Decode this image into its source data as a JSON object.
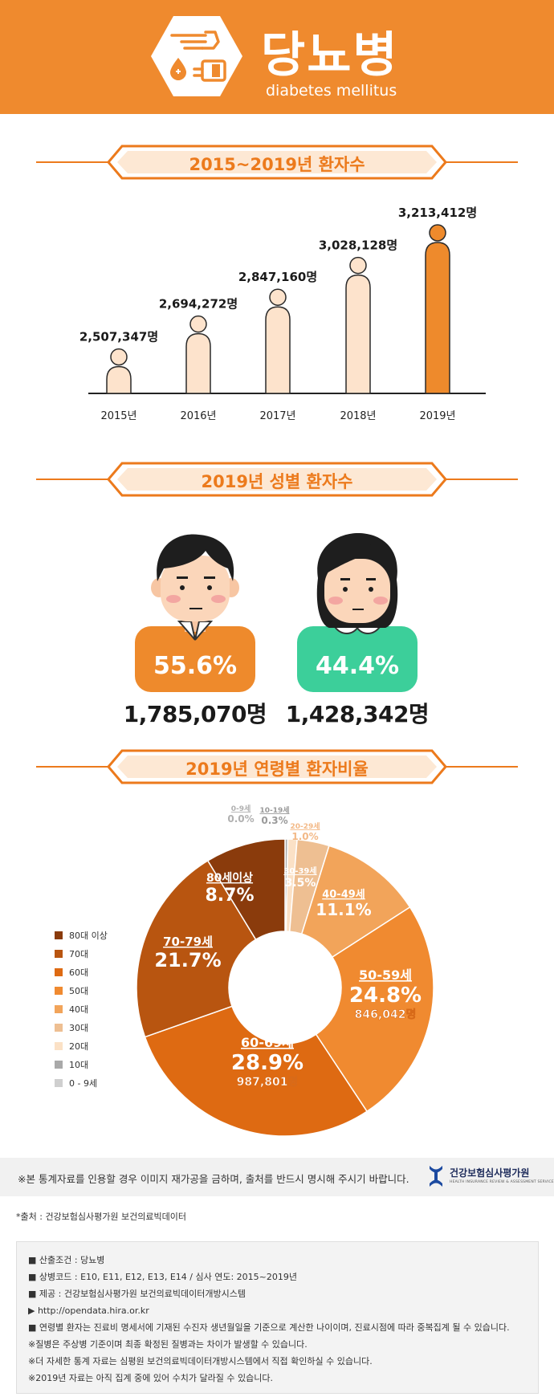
{
  "header": {
    "title": "당뇨병",
    "subtitle": "diabetes mellitus",
    "icon": "hand-blood-test-icon",
    "bg_color": "#ef8a2e"
  },
  "section1": {
    "title": "2015~2019년 환자수"
  },
  "section2": {
    "title": "2019년 성별 환자수"
  },
  "section3": {
    "title": "2019년 연령별 환자비율"
  },
  "chart_data": [
    {
      "type": "bar",
      "title": "2015~2019년 환자수",
      "categories": [
        "2015년",
        "2016년",
        "2017년",
        "2018년",
        "2019년"
      ],
      "values": [
        2507347,
        2694272,
        2847160,
        3028128,
        3213412
      ],
      "value_labels": [
        "2,507,347명",
        "2,694,272명",
        "2,847,160명",
        "3,028,128명",
        "3,213,412명"
      ],
      "highlight_index": 4,
      "colors": {
        "default": "#fde3cc",
        "highlight": "#ee8a2c"
      }
    },
    {
      "type": "bar",
      "title": "2019년 성별 환자수",
      "categories": [
        "남",
        "여"
      ],
      "percent_labels": [
        "55.6%",
        "44.4%"
      ],
      "count_labels": [
        "1,785,070명",
        "1,428,342명"
      ],
      "values": [
        1785070,
        1428342
      ],
      "colors": [
        "#ee8a2c",
        "#3ccf9a"
      ]
    },
    {
      "type": "pie",
      "title": "2019년 연령별 환자비율",
      "legend": [
        "80대 이상",
        "70대",
        "60대",
        "50대",
        "40대",
        "30대",
        "20대",
        "10대",
        "0 - 9세"
      ],
      "legend_colors": [
        "#8a3b0c",
        "#b85510",
        "#de6a12",
        "#f08a30",
        "#f2a45a",
        "#eebf92",
        "#fbe1c6",
        "#a9a9a9",
        "#cfcfcf"
      ],
      "slices": [
        {
          "label": "0-9세",
          "pct": "0.0%",
          "value": 0.0,
          "color": "#cfcfcf"
        },
        {
          "label": "10-19세",
          "pct": "0.3%",
          "value": 0.3,
          "color": "#a9a9a9"
        },
        {
          "label": "20-29세",
          "pct": "1.0%",
          "value": 1.0,
          "color": "#fbe1c6"
        },
        {
          "label": "30-39세",
          "pct": "3.5%",
          "value": 3.5,
          "color": "#eebf92"
        },
        {
          "label": "40-49세",
          "pct": "11.1%",
          "value": 11.1,
          "color": "#f2a45a"
        },
        {
          "label": "50-59세",
          "pct": "24.8%",
          "value": 24.8,
          "count": "846,042명",
          "color": "#f08a30"
        },
        {
          "label": "60-69세",
          "pct": "28.9%",
          "value": 28.9,
          "count": "987,801명",
          "color": "#de6a12"
        },
        {
          "label": "70-79세",
          "pct": "21.7%",
          "value": 21.7,
          "color": "#b85510"
        },
        {
          "label": "80세이상",
          "pct": "8.7%",
          "value": 8.7,
          "color": "#8a3b0c"
        }
      ]
    }
  ],
  "notice": {
    "text": "※본 통계자료를 인용할 경우 이미지 재가공을 금하며, 출처를 반드시 명시해 주시기 바랍니다.",
    "logo_name": "건강보험심사평가원",
    "logo_sub": "HEALTH INSURANCE REVIEW & ASSESSMENT SERVICE"
  },
  "source": "*출처 : 건강보험심사평가원 보건의료빅데이터",
  "info_lines": [
    "■ 산출조건 : 당뇨병",
    "■ 상병코드 : E10, E11, E12, E13, E14 / 심사 연도: 2015~2019년",
    "■ 제공 : 건강보험심사평가원 보건의료빅데이터개방시스템",
    "▶ http://opendata.hira.or.kr",
    "■ 연령별 환자는 진료비 명세서에 기재된 수진자 생년월일을 기준으로 계산한 나이이며, 진료시점에 따라 중복집계 될 수 있습니다.",
    "※질병은 주상병 기준이며 최종 확정된 질병과는 차이가 발생할 수 있습니다.",
    "※더 자세한 통계 자료는 심평원 보건의료빅데이터개방시스템에서 직접 확인하실 수 있습니다.",
    "※2019년 자료는 아직 집계 중에 있어 수치가 달라질 수 있습니다."
  ]
}
